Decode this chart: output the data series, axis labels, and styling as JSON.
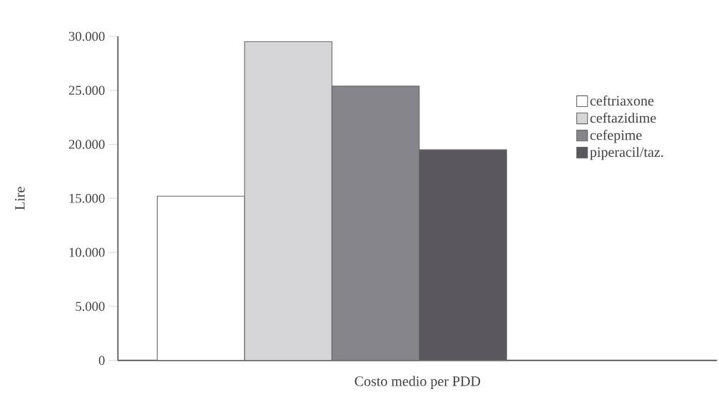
{
  "chart_data": {
    "type": "bar",
    "xlabel": "Costo medio per PDD",
    "ylabel": "Lire",
    "categories": [
      null
    ],
    "series": [
      {
        "name": "ceftriaxone",
        "color": "#ffffff",
        "values": [
          15200
        ]
      },
      {
        "name": "ceftazidime",
        "color": "#d6d6d8",
        "values": [
          29500
        ]
      },
      {
        "name": "cefepime",
        "color": "#86858b",
        "values": [
          25400
        ]
      },
      {
        "name": "piperacil/taz.",
        "color": "#5a585e",
        "values": [
          19500
        ]
      }
    ],
    "ylim": [
      0,
      30000
    ],
    "yticks": [
      0,
      {
        "value": 5000,
        "label": "5.000"
      },
      {
        "value": 10000,
        "label": "10.000"
      },
      {
        "value": 15000,
        "label": "15.000"
      },
      {
        "value": 20000,
        "label": "20.000"
      },
      {
        "value": 25000,
        "label": "25.000"
      },
      {
        "value": 30000,
        "label": "30.000"
      }
    ],
    "grid": false,
    "legend": "right"
  }
}
